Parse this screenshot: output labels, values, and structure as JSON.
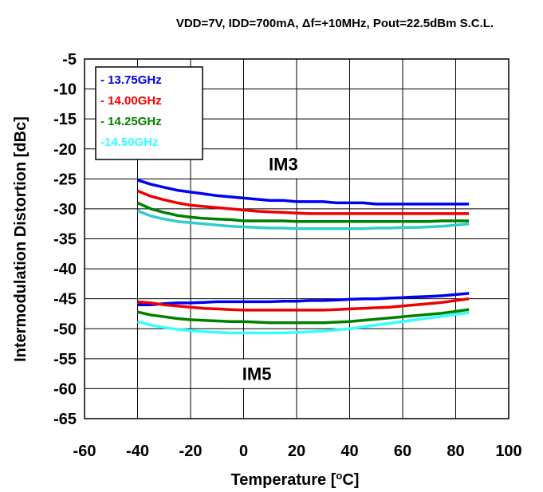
{
  "chart_data": {
    "type": "line",
    "title": "VDD=7V, IDD=700mA, Δf=+10MHz,  Pout=22.5dBm S.C.L.",
    "xlabel": "Temperature [°C]",
    "xlabel_main": "Temperature [",
    "xlabel_sup": "o",
    "xlabel_end": "C]",
    "ylabel": "Intermodulation Distortion [dBc]",
    "xlim": [
      -60,
      100
    ],
    "ylim": [
      -65,
      -5
    ],
    "x_ticks": [
      -60,
      -40,
      -20,
      0,
      20,
      40,
      60,
      80,
      100
    ],
    "y_ticks": [
      -5,
      -10,
      -15,
      -20,
      -25,
      -30,
      -35,
      -40,
      -45,
      -50,
      -55,
      -60,
      -65
    ],
    "grid": true,
    "legend_placement": "top-left",
    "annotations": [
      {
        "text": "IM3",
        "x": 15,
        "y": -22.5
      },
      {
        "text": "IM5",
        "x": 5,
        "y": -57.5
      }
    ],
    "series": [
      {
        "name": "- 13.75GHz",
        "color": "#0000ee",
        "group": "IM3",
        "x": [
          -40,
          -35,
          -30,
          -25,
          -20,
          -15,
          -10,
          -5,
          0,
          5,
          10,
          15,
          20,
          25,
          30,
          35,
          40,
          45,
          50,
          55,
          60,
          65,
          70,
          75,
          80,
          85
        ],
        "y": [
          -25.2,
          -25.9,
          -26.4,
          -26.9,
          -27.2,
          -27.5,
          -27.8,
          -28.0,
          -28.2,
          -28.4,
          -28.6,
          -28.6,
          -28.8,
          -28.8,
          -28.8,
          -29.0,
          -29.0,
          -29.0,
          -29.2,
          -29.2,
          -29.2,
          -29.2,
          -29.2,
          -29.2,
          -29.2,
          -29.2
        ]
      },
      {
        "name": "- 14.00GHz",
        "color": "#ee0000",
        "group": "IM3",
        "x": [
          -40,
          -35,
          -30,
          -25,
          -20,
          -15,
          -10,
          -5,
          0,
          5,
          10,
          15,
          20,
          25,
          30,
          35,
          40,
          45,
          50,
          55,
          60,
          65,
          70,
          75,
          80,
          85
        ],
        "y": [
          -27.0,
          -27.9,
          -28.5,
          -29.0,
          -29.4,
          -29.6,
          -29.8,
          -30.0,
          -30.2,
          -30.4,
          -30.5,
          -30.6,
          -30.7,
          -30.8,
          -30.8,
          -30.8,
          -30.8,
          -30.8,
          -30.8,
          -30.8,
          -30.8,
          -30.8,
          -30.8,
          -30.8,
          -30.8,
          -30.8
        ]
      },
      {
        "name": "- 14.25GHz",
        "color": "#008000",
        "group": "IM3",
        "x": [
          -40,
          -35,
          -30,
          -25,
          -20,
          -15,
          -10,
          -5,
          0,
          5,
          10,
          15,
          20,
          25,
          30,
          35,
          40,
          45,
          50,
          55,
          60,
          65,
          70,
          75,
          80,
          85
        ],
        "y": [
          -29.0,
          -30.0,
          -30.6,
          -31.1,
          -31.4,
          -31.6,
          -31.7,
          -31.8,
          -32.0,
          -32.0,
          -32.0,
          -32.0,
          -32.1,
          -32.1,
          -32.1,
          -32.1,
          -32.1,
          -32.1,
          -32.1,
          -32.1,
          -32.1,
          -32.1,
          -32.1,
          -32.0,
          -32.0,
          -32.0
        ]
      },
      {
        "name": "-14.50GHz",
        "color": "#33cccc",
        "group": "IM3",
        "x": [
          -40,
          -35,
          -30,
          -25,
          -20,
          -15,
          -10,
          -5,
          0,
          5,
          10,
          15,
          20,
          25,
          30,
          35,
          40,
          45,
          50,
          55,
          60,
          65,
          70,
          75,
          80,
          85
        ],
        "y": [
          -30.3,
          -31.2,
          -31.7,
          -32.1,
          -32.3,
          -32.5,
          -32.7,
          -32.9,
          -33.0,
          -33.1,
          -33.2,
          -33.2,
          -33.3,
          -33.3,
          -33.3,
          -33.3,
          -33.3,
          -33.3,
          -33.2,
          -33.2,
          -33.1,
          -33.1,
          -33.0,
          -32.9,
          -32.7,
          -32.5
        ]
      },
      {
        "name": "- 13.75GHz",
        "color": "#0000ee",
        "group": "IM5",
        "x": [
          -40,
          -35,
          -30,
          -25,
          -20,
          -15,
          -10,
          -5,
          0,
          5,
          10,
          15,
          20,
          25,
          30,
          35,
          40,
          45,
          50,
          55,
          60,
          65,
          70,
          75,
          80,
          85
        ],
        "y": [
          -46.0,
          -46.0,
          -45.8,
          -45.7,
          -45.7,
          -45.6,
          -45.5,
          -45.5,
          -45.5,
          -45.5,
          -45.5,
          -45.4,
          -45.4,
          -45.3,
          -45.3,
          -45.2,
          -45.1,
          -45.0,
          -45.0,
          -44.9,
          -44.8,
          -44.7,
          -44.6,
          -44.5,
          -44.3,
          -44.1
        ]
      },
      {
        "name": "- 14.00GHz",
        "color": "#ee0000",
        "group": "IM5",
        "x": [
          -40,
          -35,
          -30,
          -25,
          -20,
          -15,
          -10,
          -5,
          0,
          5,
          10,
          15,
          20,
          25,
          30,
          35,
          40,
          45,
          50,
          55,
          60,
          65,
          70,
          75,
          80,
          85
        ],
        "y": [
          -45.5,
          -45.7,
          -46.0,
          -46.2,
          -46.4,
          -46.6,
          -46.7,
          -46.8,
          -46.9,
          -46.9,
          -46.9,
          -46.9,
          -46.9,
          -46.9,
          -46.9,
          -46.8,
          -46.7,
          -46.6,
          -46.5,
          -46.4,
          -46.2,
          -46.0,
          -45.8,
          -45.6,
          -45.3,
          -45.0
        ]
      },
      {
        "name": "- 14.25GHz",
        "color": "#008000",
        "group": "IM5",
        "x": [
          -40,
          -35,
          -30,
          -25,
          -20,
          -15,
          -10,
          -5,
          0,
          5,
          10,
          15,
          20,
          25,
          30,
          35,
          40,
          45,
          50,
          55,
          60,
          65,
          70,
          75,
          80,
          85
        ],
        "y": [
          -47.2,
          -47.7,
          -48.0,
          -48.3,
          -48.5,
          -48.6,
          -48.7,
          -48.8,
          -48.8,
          -48.9,
          -49.0,
          -49.0,
          -49.0,
          -49.0,
          -49.0,
          -48.9,
          -48.8,
          -48.6,
          -48.4,
          -48.2,
          -48.0,
          -47.8,
          -47.6,
          -47.4,
          -47.1,
          -46.8
        ]
      },
      {
        "name": "-14.50GHz",
        "color": "#33ffff",
        "group": "IM5",
        "x": [
          -40,
          -35,
          -30,
          -25,
          -20,
          -15,
          -10,
          -5,
          0,
          5,
          10,
          15,
          20,
          25,
          30,
          35,
          40,
          45,
          50,
          55,
          60,
          65,
          70,
          75,
          80,
          85
        ],
        "y": [
          -48.8,
          -49.4,
          -49.8,
          -50.1,
          -50.3,
          -50.5,
          -50.6,
          -50.7,
          -50.7,
          -50.7,
          -50.7,
          -50.7,
          -50.6,
          -50.5,
          -50.4,
          -50.2,
          -50.0,
          -49.7,
          -49.4,
          -49.1,
          -48.8,
          -48.5,
          -48.2,
          -47.9,
          -47.6,
          -47.3
        ]
      }
    ],
    "legend": [
      {
        "label": "- 13.75GHz",
        "color": "#0000ee"
      },
      {
        "label": "- 14.00GHz",
        "color": "#ee0000"
      },
      {
        "label": "- 14.25GHz",
        "color": "#008000"
      },
      {
        "label": "-14.50GHz",
        "color": "#33ffff"
      }
    ]
  }
}
